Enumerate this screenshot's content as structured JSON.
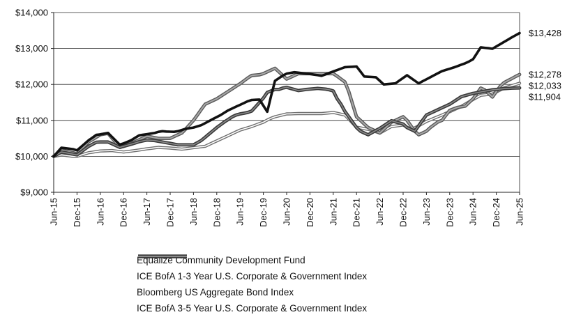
{
  "chart_data": {
    "type": "line",
    "x": [
      "Jun-15",
      "Jul-15",
      "Aug-15",
      "Sep-15",
      "Oct-15",
      "Nov-15",
      "Dec-15",
      "Jan-16",
      "Feb-16",
      "Mar-16",
      "Apr-16",
      "May-16",
      "Jun-16",
      "Jul-16",
      "Aug-16",
      "Sep-16",
      "Oct-16",
      "Nov-16",
      "Dec-16",
      "Jan-17",
      "Feb-17",
      "Mar-17",
      "Apr-17",
      "May-17",
      "Jun-17",
      "Jul-17",
      "Aug-17",
      "Sep-17",
      "Oct-17",
      "Nov-17",
      "Dec-17",
      "Jan-18",
      "Feb-18",
      "Mar-18",
      "Apr-18",
      "May-18",
      "Jun-18",
      "Jul-18",
      "Aug-18",
      "Sep-18",
      "Oct-18",
      "Nov-18",
      "Dec-18",
      "Jan-19",
      "Feb-19",
      "Mar-19",
      "Apr-19",
      "May-19",
      "Jun-19",
      "Jul-19",
      "Aug-19",
      "Sep-19",
      "Oct-19",
      "Nov-19",
      "Dec-19",
      "Jan-20",
      "Feb-20",
      "Mar-20",
      "Apr-20",
      "May-20",
      "Jun-20",
      "Jul-20",
      "Aug-20",
      "Sep-20",
      "Oct-20",
      "Nov-20",
      "Dec-20",
      "Jan-21",
      "Feb-21",
      "Mar-21",
      "Apr-21",
      "May-21",
      "Jun-21",
      "Jul-21",
      "Aug-21",
      "Sep-21",
      "Oct-21",
      "Nov-21",
      "Dec-21",
      "Jan-22",
      "Feb-22",
      "Mar-22",
      "Apr-22",
      "May-22",
      "Jun-22",
      "Jul-22",
      "Aug-22",
      "Sep-22",
      "Oct-22",
      "Nov-22",
      "Dec-22",
      "Jan-23",
      "Feb-23",
      "Mar-23",
      "Apr-23",
      "May-23",
      "Jun-23",
      "Jul-23",
      "Aug-23",
      "Sep-23",
      "Oct-23",
      "Nov-23",
      "Dec-23",
      "Jan-24",
      "Feb-24",
      "Mar-24",
      "Apr-24",
      "May-24",
      "Jun-24",
      "Jul-24",
      "Aug-24",
      "Sep-24",
      "Oct-24",
      "Nov-24",
      "Dec-24",
      "Jan-25",
      "Feb-25",
      "Mar-25",
      "Apr-25",
      "May-25",
      "Jun-25"
    ],
    "xticks": [
      "Jun-15",
      "Dec-15",
      "Jun-16",
      "Dec-16",
      "Jun-17",
      "Dec-17",
      "Jun-18",
      "Dec-18",
      "Jun-19",
      "Dec-19",
      "Jun-20",
      "Dec-20",
      "Jun-21",
      "Dec-21",
      "Jun-22",
      "Dec-22",
      "Jun-23",
      "Dec-23",
      "Jun-24",
      "Dec-24",
      "Jun-25"
    ],
    "yticks": [
      "$9,000",
      "$10,000",
      "$11,000",
      "$12,000",
      "$13,000",
      "$14,000"
    ],
    "ylim": [
      9000,
      14000
    ],
    "grid": true,
    "legend_position": "bottom",
    "series": [
      {
        "name": "Equalize Community Development Fund",
        "style": "solid",
        "end_label": "$13,428",
        "values": [
          10000,
          10120,
          10240,
          10227,
          10213,
          10200,
          10167,
          10260,
          10353,
          10447,
          10522,
          10598,
          10610,
          10630,
          10650,
          10543,
          10435,
          10328,
          10360,
          10405,
          10450,
          10517,
          10583,
          10600,
          10617,
          10633,
          10650,
          10683,
          10700,
          10690,
          10687,
          10683,
          10700,
          10733,
          10767,
          10783,
          10800,
          10833,
          10867,
          10923,
          10980,
          11037,
          11093,
          11150,
          11217,
          11283,
          11333,
          11383,
          11433,
          11483,
          11533,
          11567,
          11573,
          11580,
          11410,
          11240,
          11680,
          12100,
          12173,
          12247,
          12300,
          12320,
          12340,
          12327,
          12313,
          12300,
          12290,
          12273,
          12257,
          12240,
          12280,
          12320,
          12360,
          12400,
          12440,
          12480,
          12487,
          12493,
          12500,
          12360,
          12220,
          12213,
          12207,
          12200,
          12100,
          12000,
          12010,
          12020,
          12030,
          12105,
          12180,
          12255,
          12180,
          12105,
          12030,
          12087,
          12143,
          12200,
          12257,
          12313,
          12370,
          12403,
          12437,
          12470,
          12510,
          12550,
          12590,
          12640,
          12700,
          12867,
          13033,
          13020,
          13007,
          12993,
          13057,
          13120,
          13183,
          13247,
          13310,
          13369,
          13428
        ]
      },
      {
        "name": "ICE BofA 1-3 Year U.S. Corporate & Government Index",
        "style": "double-light",
        "end_label": "$12,033",
        "values": [
          10000,
          10020,
          10040,
          10027,
          10013,
          10000,
          10000,
          10033,
          10067,
          10100,
          10117,
          10133,
          10150,
          10153,
          10157,
          10160,
          10147,
          10133,
          10120,
          10133,
          10147,
          10160,
          10177,
          10193,
          10210,
          10223,
          10237,
          10250,
          10243,
          10237,
          10230,
          10220,
          10210,
          10200,
          10213,
          10227,
          10240,
          10253,
          10267,
          10280,
          10330,
          10380,
          10430,
          10480,
          10530,
          10580,
          10630,
          10680,
          10730,
          10763,
          10797,
          10830,
          10870,
          10910,
          10950,
          11010,
          11060,
          11100,
          11127,
          11153,
          11180,
          11183,
          11187,
          11190,
          11190,
          11190,
          11190,
          11190,
          11190,
          11190,
          11200,
          11210,
          11220,
          11197,
          11173,
          11150,
          11037,
          10923,
          10810,
          10790,
          10770,
          10750,
          10717,
          10683,
          10650,
          10710,
          10770,
          10830,
          10843,
          10857,
          10870,
          10810,
          10750,
          10790,
          10850,
          10910,
          10970,
          11015,
          11060,
          11105,
          11150,
          11195,
          11240,
          11290,
          11340,
          11390,
          11453,
          11517,
          11580,
          11640,
          11700,
          11710,
          11720,
          11730,
          11788,
          11845,
          11903,
          11935,
          11968,
          12000,
          12033
        ]
      },
      {
        "name": "Bloomberg US Aggregate Bond Index",
        "style": "double-mid",
        "end_label": "$12,278",
        "values": [
          10000,
          10087,
          10173,
          10147,
          10123,
          10100,
          10067,
          10180,
          10293,
          10407,
          10468,
          10534,
          10600,
          10620,
          10640,
          10510,
          10380,
          10250,
          10280,
          10320,
          10360,
          10410,
          10460,
          10510,
          10560,
          10540,
          10520,
          10500,
          10500,
          10500,
          10500,
          10550,
          10600,
          10650,
          10760,
          10880,
          11000,
          11150,
          11300,
          11450,
          11500,
          11550,
          11600,
          11670,
          11740,
          11810,
          11880,
          11950,
          12020,
          12100,
          12180,
          12250,
          12260,
          12270,
          12300,
          12350,
          12400,
          12450,
          12350,
          12250,
          12150,
          12200,
          12250,
          12300,
          12300,
          12300,
          12300,
          12300,
          12300,
          12300,
          12300,
          12300,
          12300,
          12230,
          12150,
          12070,
          11800,
          11450,
          11100,
          11000,
          10900,
          10800,
          10750,
          10700,
          10650,
          10750,
          10850,
          10950,
          11000,
          11050,
          11100,
          11000,
          10850,
          10700,
          10600,
          10650,
          10700,
          10800,
          10880,
          10960,
          11000,
          11140,
          11280,
          11320,
          11360,
          11380,
          11400,
          11500,
          11600,
          11750,
          11900,
          11850,
          11750,
          11650,
          11800,
          11950,
          12050,
          12108,
          12165,
          12222,
          12278
        ]
      },
      {
        "name": "ICE BofA 3-5 Year U.S. Corporate & Government Index",
        "style": "double-dark",
        "end_label": "$11,904",
        "values": [
          10000,
          10060,
          10120,
          10100,
          10080,
          10060,
          10040,
          10120,
          10200,
          10280,
          10337,
          10393,
          10400,
          10400,
          10400,
          10350,
          10300,
          10250,
          10280,
          10310,
          10340,
          10373,
          10407,
          10430,
          10453,
          10447,
          10440,
          10420,
          10400,
          10380,
          10360,
          10340,
          10320,
          10320,
          10320,
          10320,
          10320,
          10380,
          10440,
          10530,
          10620,
          10710,
          10800,
          10880,
          10960,
          11030,
          11100,
          11150,
          11180,
          11200,
          11220,
          11260,
          11380,
          11500,
          11620,
          11780,
          11820,
          11860,
          11860,
          11900,
          11920,
          11890,
          11860,
          11830,
          11845,
          11860,
          11870,
          11880,
          11890,
          11880,
          11870,
          11850,
          11820,
          11600,
          11450,
          11250,
          11100,
          10950,
          10800,
          10700,
          10650,
          10600,
          10660,
          10720,
          10780,
          10850,
          10920,
          10990,
          10960,
          10930,
          10900,
          10800,
          10750,
          10700,
          10850,
          11000,
          11150,
          11200,
          11250,
          11300,
          11350,
          11400,
          11450,
          11520,
          11590,
          11660,
          11690,
          11720,
          11750,
          11770,
          11790,
          11810,
          11830,
          11850,
          11861,
          11872,
          11883,
          11890,
          11897,
          11900,
          11904
        ]
      }
    ]
  }
}
